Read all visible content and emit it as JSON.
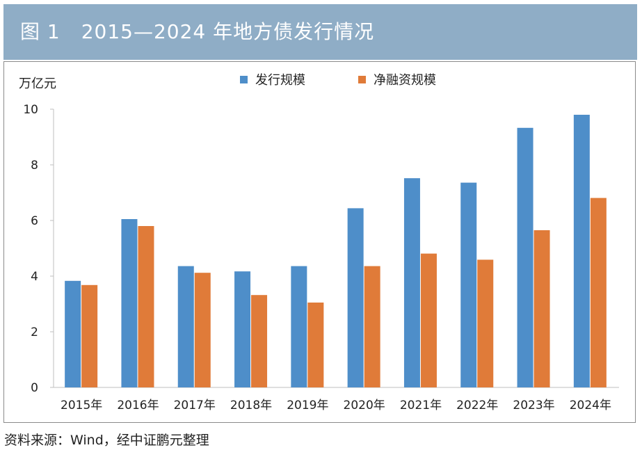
{
  "header": {
    "figure_label": "图 1",
    "title": "2015—2024 年地方债发行情况"
  },
  "chart_data": {
    "type": "bar",
    "ylabel": "万亿元",
    "ylim": [
      0,
      10
    ],
    "yticks": [
      0,
      2,
      4,
      6,
      8,
      10
    ],
    "categories": [
      "2015年",
      "2016年",
      "2017年",
      "2018年",
      "2019年",
      "2020年",
      "2021年",
      "2022年",
      "2023年",
      "2024年"
    ],
    "series": [
      {
        "name": "发行规模",
        "color": "#4e8ec9",
        "values": [
          3.83,
          6.05,
          4.36,
          4.17,
          4.36,
          6.44,
          7.52,
          7.36,
          9.33,
          9.8
        ]
      },
      {
        "name": "净融资规模",
        "color": "#e07b39",
        "values": [
          3.68,
          5.8,
          4.12,
          3.32,
          3.05,
          4.36,
          4.81,
          4.59,
          5.65,
          6.81
        ]
      }
    ],
    "legend_position": "top-center",
    "grid": false
  },
  "footer": {
    "source": "资料来源：Wind，经中证鹏元整理"
  }
}
